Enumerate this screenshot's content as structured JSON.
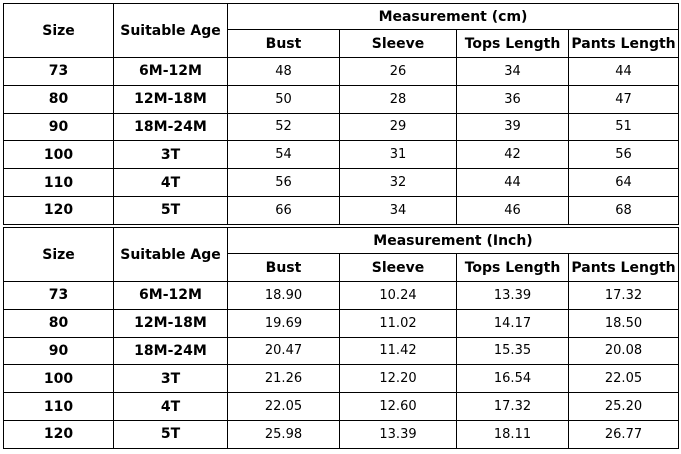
{
  "tables": [
    {
      "headers": {
        "size": "Size",
        "age": "Suitable Age",
        "measurement": "Measurement (cm)",
        "bust": "Bust",
        "sleeve": "Sleeve",
        "tops_length": "Tops Length",
        "pants_length": "Pants Length"
      },
      "rows": [
        {
          "size": "73",
          "age": "6M-12M",
          "bust": "48",
          "sleeve": "26",
          "tops_length": "34",
          "pants_length": "44"
        },
        {
          "size": "80",
          "age": "12M-18M",
          "bust": "50",
          "sleeve": "28",
          "tops_length": "36",
          "pants_length": "47"
        },
        {
          "size": "90",
          "age": "18M-24M",
          "bust": "52",
          "sleeve": "29",
          "tops_length": "39",
          "pants_length": "51"
        },
        {
          "size": "100",
          "age": "3T",
          "bust": "54",
          "sleeve": "31",
          "tops_length": "42",
          "pants_length": "56"
        },
        {
          "size": "110",
          "age": "4T",
          "bust": "56",
          "sleeve": "32",
          "tops_length": "44",
          "pants_length": "64"
        },
        {
          "size": "120",
          "age": "5T",
          "bust": "66",
          "sleeve": "34",
          "tops_length": "46",
          "pants_length": "68"
        }
      ]
    },
    {
      "headers": {
        "size": "Size",
        "age": "Suitable Age",
        "measurement": "Measurement (Inch)",
        "bust": "Bust",
        "sleeve": "Sleeve",
        "tops_length": "Tops Length",
        "pants_length": "Pants Length"
      },
      "rows": [
        {
          "size": "73",
          "age": "6M-12M",
          "bust": "18.90",
          "sleeve": "10.24",
          "tops_length": "13.39",
          "pants_length": "17.32"
        },
        {
          "size": "80",
          "age": "12M-18M",
          "bust": "19.69",
          "sleeve": "11.02",
          "tops_length": "14.17",
          "pants_length": "18.50"
        },
        {
          "size": "90",
          "age": "18M-24M",
          "bust": "20.47",
          "sleeve": "11.42",
          "tops_length": "15.35",
          "pants_length": "20.08"
        },
        {
          "size": "100",
          "age": "3T",
          "bust": "21.26",
          "sleeve": "12.20",
          "tops_length": "16.54",
          "pants_length": "22.05"
        },
        {
          "size": "110",
          "age": "4T",
          "bust": "22.05",
          "sleeve": "12.60",
          "tops_length": "17.32",
          "pants_length": "25.20"
        },
        {
          "size": "120",
          "age": "5T",
          "bust": "25.98",
          "sleeve": "13.39",
          "tops_length": "18.11",
          "pants_length": "26.77"
        }
      ]
    }
  ]
}
